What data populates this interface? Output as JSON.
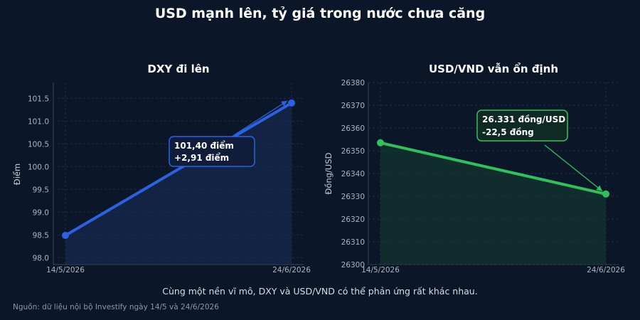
{
  "page": {
    "title": "USD mạnh lên, tỷ giá trong nước chưa căng",
    "caption": "Cùng một nền vĩ mô, DXY và USD/VND có thể phản ứng rất khác nhau.",
    "source": "Nguồn: dữ liệu nội bộ Investify ngày 14/5 và 24/6/2026"
  },
  "colors": {
    "background": "#0b1728",
    "dxy_line": "#2b62e3",
    "vnd_line": "#2fc25b"
  },
  "chart_data": [
    {
      "type": "area",
      "title": "DXY đi lên",
      "xlabel": "",
      "ylabel": "Điểm",
      "categories": [
        "14/5/2026",
        "24/6/2026"
      ],
      "values": [
        98.49,
        101.4
      ],
      "ylim": [
        97.85,
        101.85
      ],
      "yticks": [
        "98.0",
        "98.5",
        "99.0",
        "99.5",
        "100.0",
        "100.5",
        "101.0",
        "101.5"
      ],
      "grid": true,
      "annotation": {
        "line1": "101,40 điểm",
        "line2": "+2,91 điểm"
      }
    },
    {
      "type": "area",
      "title": "USD/VND vẫn ổn định",
      "xlabel": "",
      "ylabel": "Đồng/USD",
      "categories": [
        "14/5/2026",
        "24/6/2026"
      ],
      "values": [
        26353.5,
        26331
      ],
      "ylim": [
        26300,
        26380
      ],
      "yticks": [
        "26300",
        "26310",
        "26320",
        "26330",
        "26340",
        "26350",
        "26360",
        "26370",
        "26380"
      ],
      "grid": true,
      "annotation": {
        "line1": "26.331 đồng/USD",
        "line2": "-22,5 đồng"
      }
    }
  ]
}
